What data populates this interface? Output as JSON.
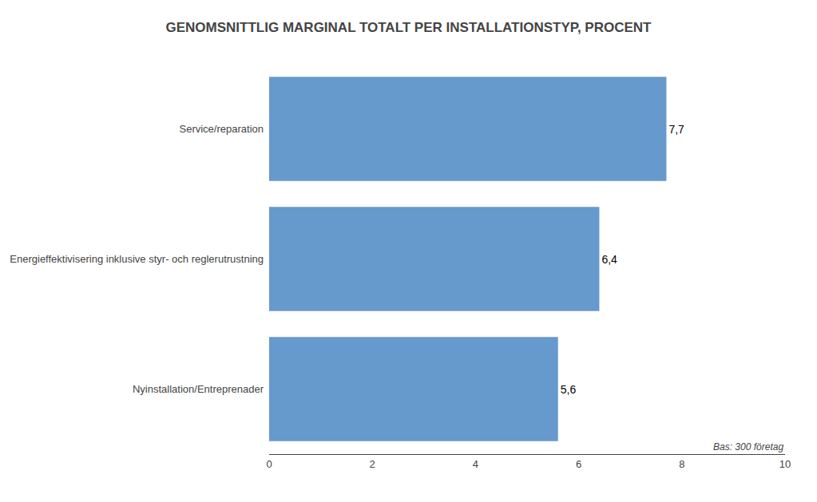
{
  "chart_data": {
    "type": "bar",
    "orientation": "horizontal",
    "title": "GENOMSNITTLIG MARGINAL TOTALT PER INSTALLATIONSTYP, PROCENT",
    "categories": [
      "Nyinstallation/Entreprenader",
      "Energieffektivisering inklusive styr- och reglerutrustning",
      "Service/reparation"
    ],
    "values": [
      5.6,
      6.4,
      7.7
    ],
    "value_labels": [
      "5,6",
      "6,4",
      "7,7"
    ],
    "data_labels": true,
    "color": "#6699CC",
    "xlim": [
      0,
      10
    ],
    "xticks": [
      0,
      2,
      4,
      6,
      8,
      10
    ],
    "grid": false,
    "annotations": [
      "Bas: 300 företag"
    ]
  }
}
